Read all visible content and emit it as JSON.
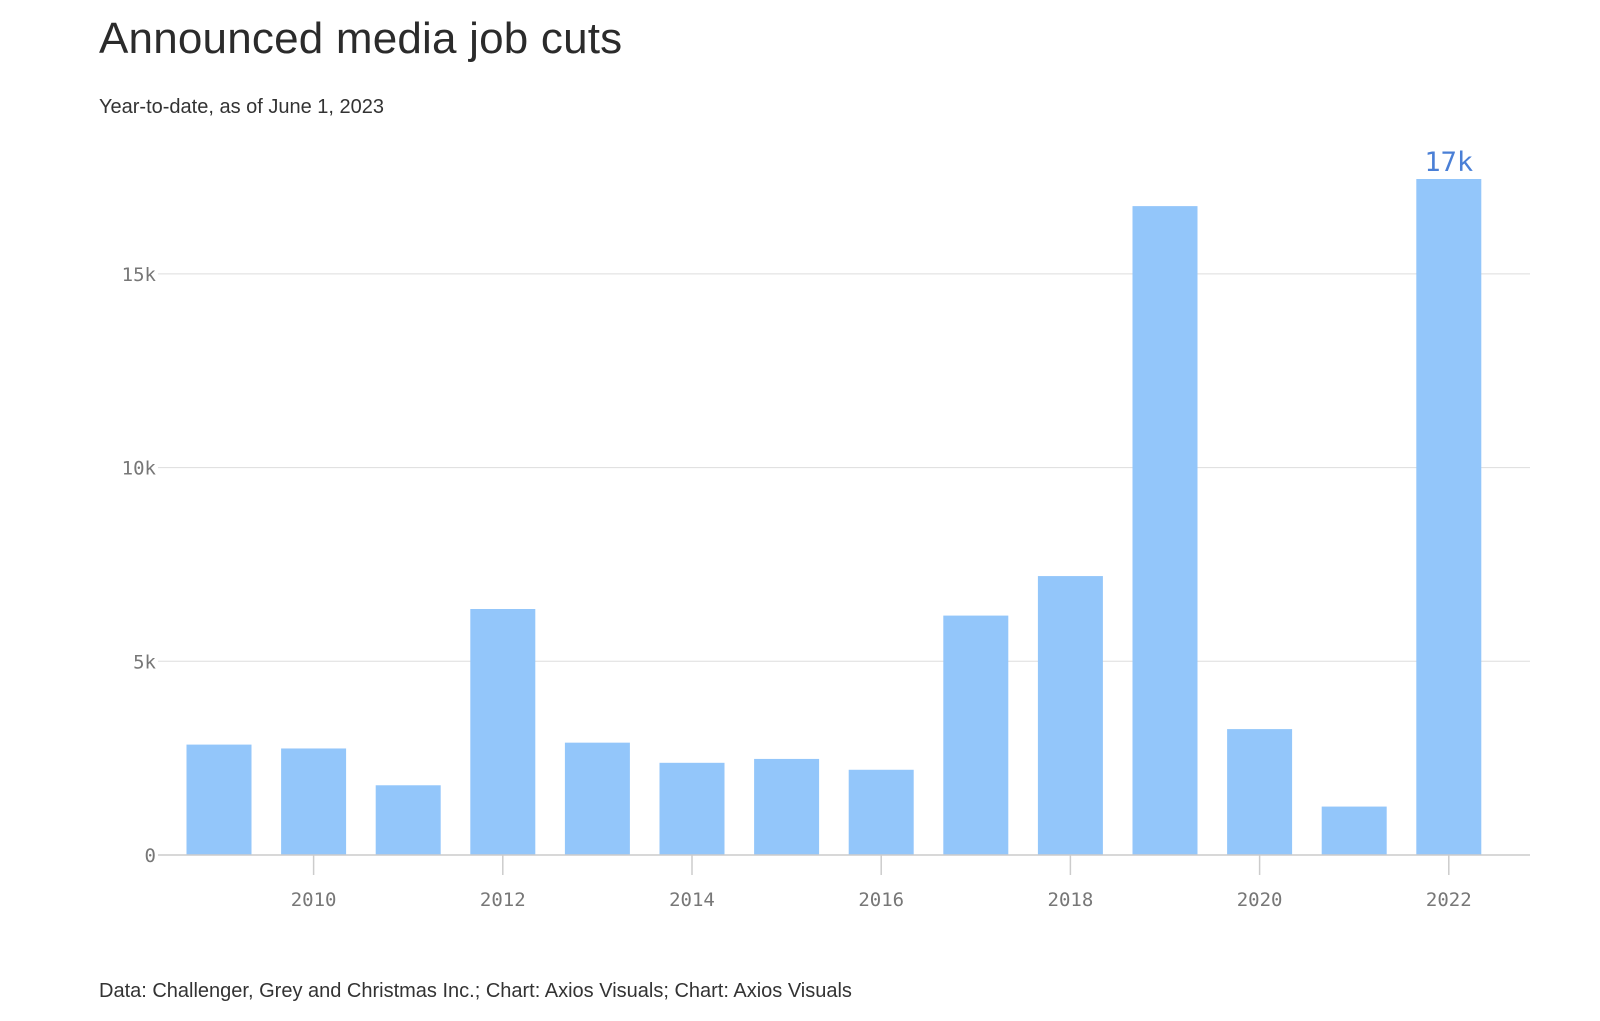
{
  "title": "Announced media job cuts",
  "subtitle": "Year-to-date, as of June 1, 2023",
  "footer": "Data: Challenger, Grey and Christmas Inc.; Chart: Axios Visuals; Chart: Axios Visuals",
  "colors": {
    "bar": "#93c6fa",
    "label": "#4a7fd6",
    "grid": "#dddddd",
    "axis": "#cccccc",
    "tick_text": "#777777"
  },
  "chart_data": {
    "type": "bar",
    "title": "Announced media job cuts",
    "subtitle": "Year-to-date, as of June 1, 2023",
    "xlabel": "",
    "ylabel": "",
    "x": [
      2009,
      2010,
      2011,
      2012,
      2013,
      2014,
      2015,
      2016,
      2017,
      2018,
      2019,
      2020,
      2021,
      2022
    ],
    "values": [
      2850,
      2750,
      1800,
      6350,
      2900,
      2380,
      2480,
      2200,
      6180,
      7200,
      16750,
      3250,
      1250,
      17450
    ],
    "ylim": [
      0,
      17450
    ],
    "y_ticks": [
      {
        "value": 0,
        "label": "0"
      },
      {
        "value": 5000,
        "label": "5k"
      },
      {
        "value": 10000,
        "label": "10k"
      },
      {
        "value": 15000,
        "label": "15k"
      }
    ],
    "x_ticks": [
      {
        "value": 2010,
        "label": "2010"
      },
      {
        "value": 2012,
        "label": "2012"
      },
      {
        "value": 2014,
        "label": "2014"
      },
      {
        "value": 2016,
        "label": "2016"
      },
      {
        "value": 2018,
        "label": "2018"
      },
      {
        "value": 2020,
        "label": "2020"
      },
      {
        "value": 2022,
        "label": "2022"
      }
    ],
    "annotations": [
      {
        "x": 2022,
        "label": "17k"
      }
    ],
    "grid": true,
    "legend": "none"
  }
}
